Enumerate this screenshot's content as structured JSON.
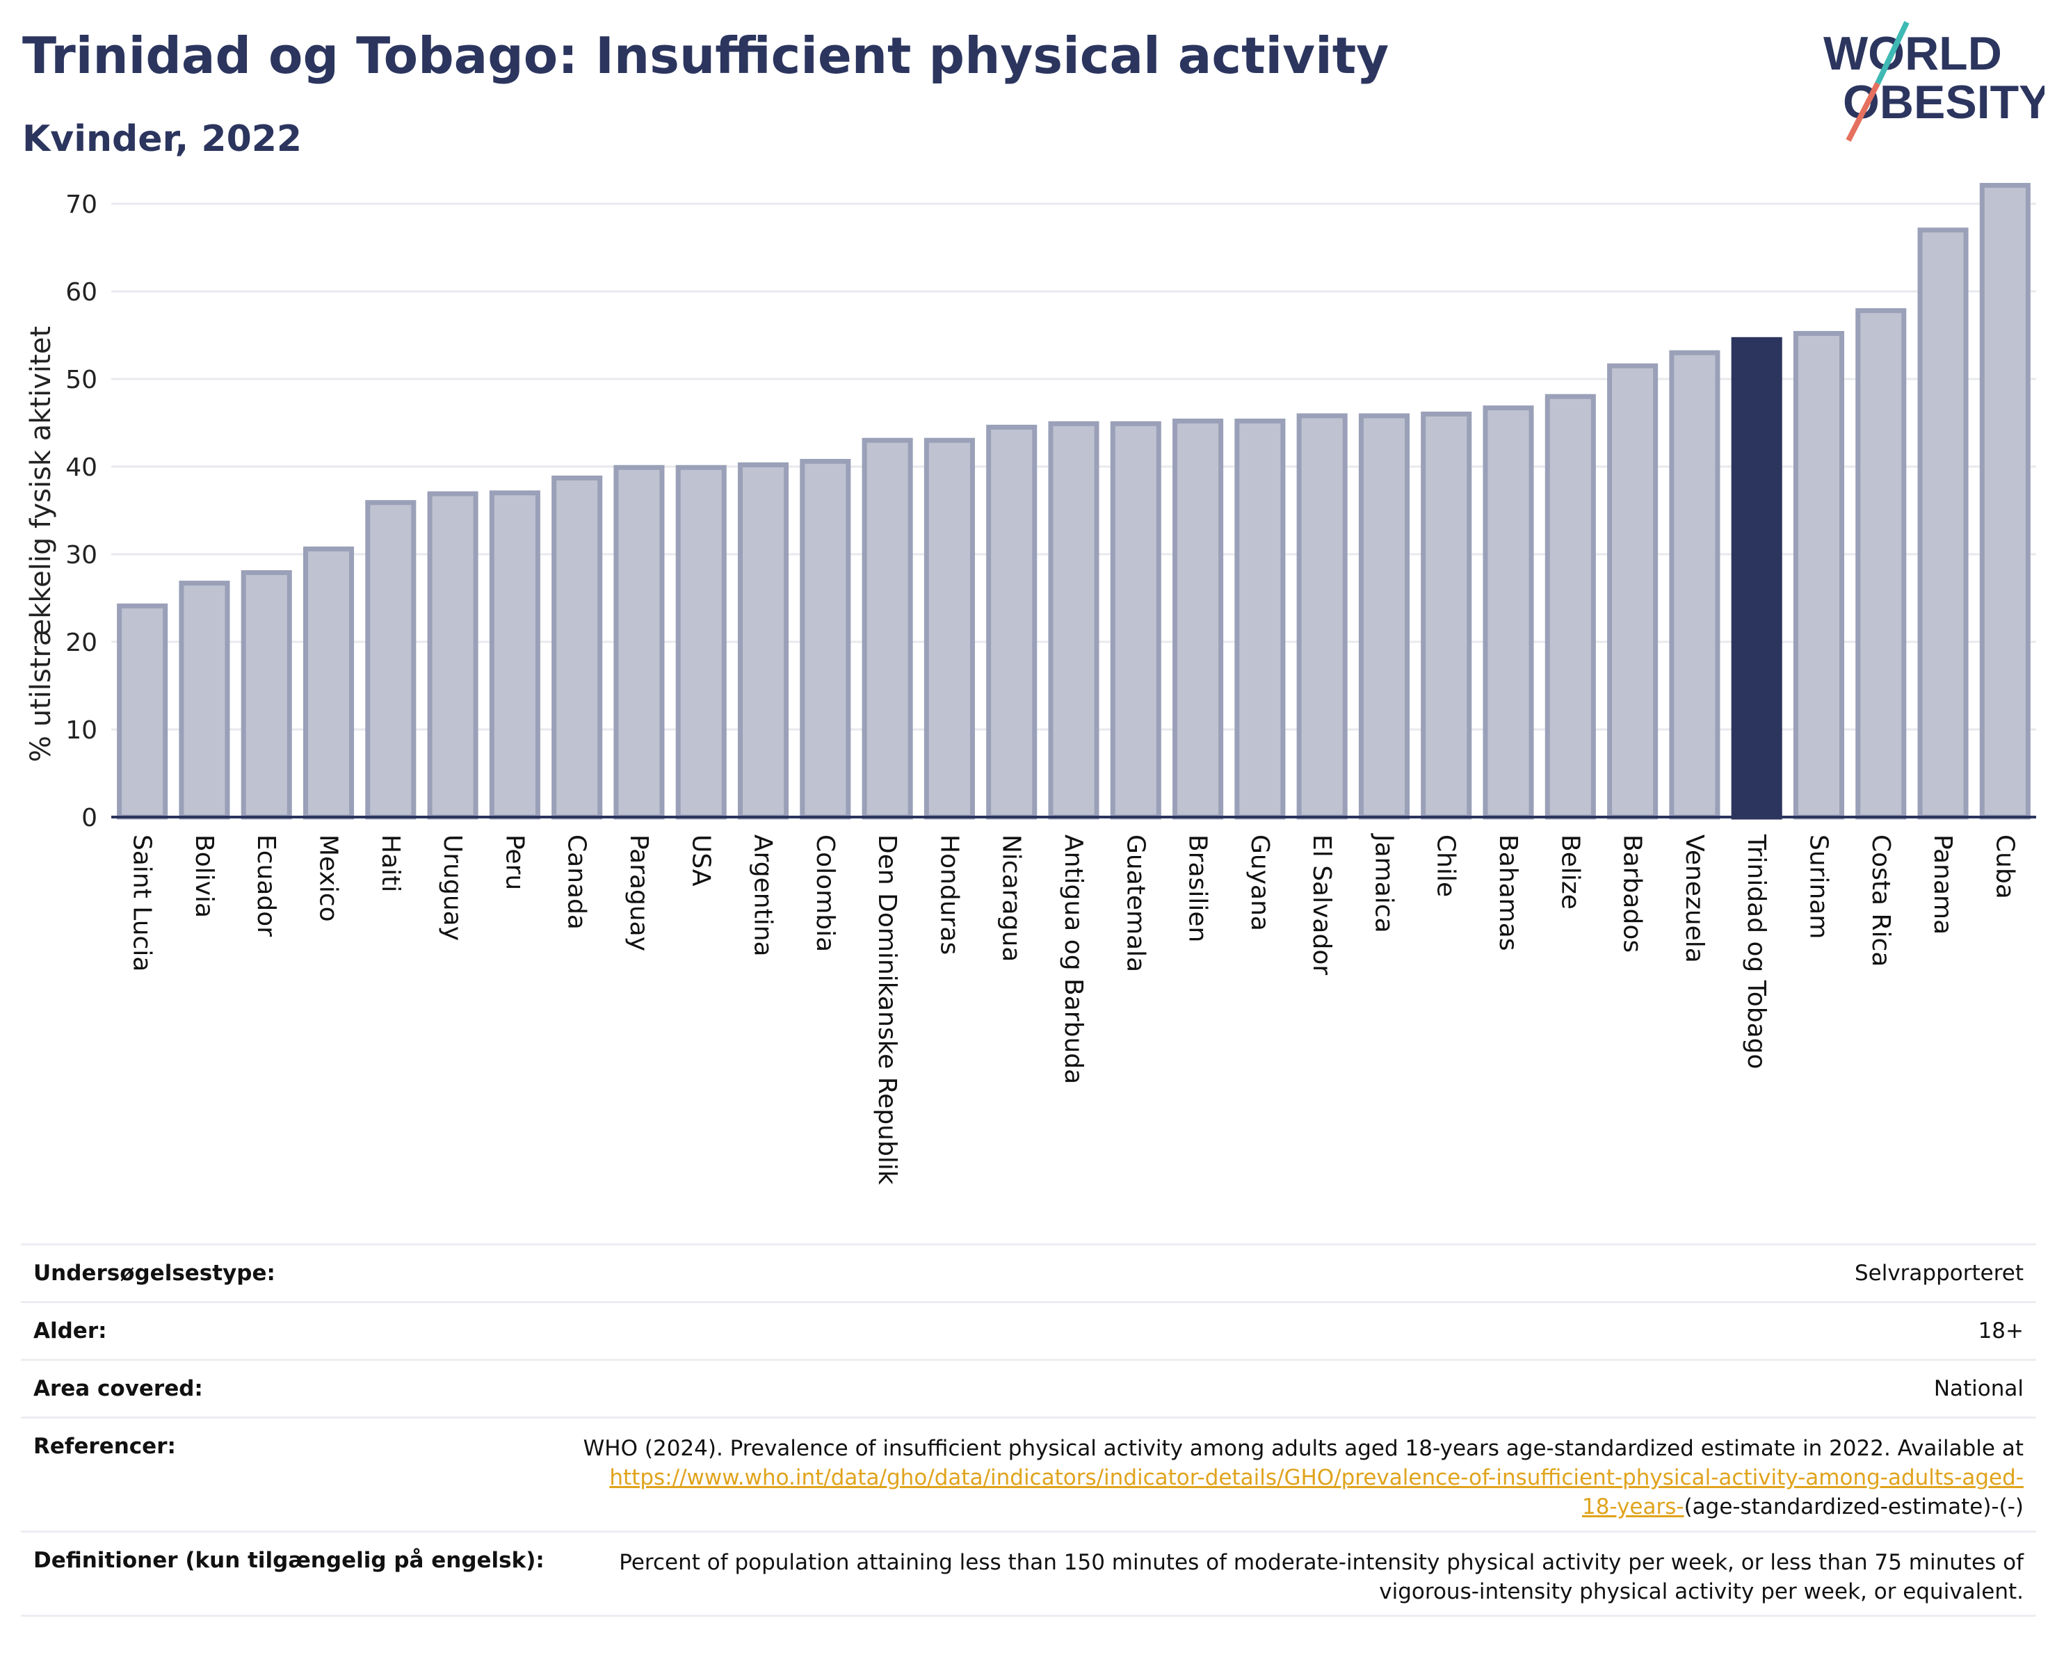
{
  "header": {
    "title": "Trinidad og Tobago: Insufficient physical activity",
    "subtitle": "Kvinder, 2022"
  },
  "logo": {
    "line1": "WORLD",
    "line2": "OBESITY",
    "icon": "world-obesity-logo"
  },
  "colors": {
    "bar": "#bfc2d0",
    "bar_stroke": "#9aa0b8",
    "highlight": "#2b355e",
    "grid": "#e8e9ee",
    "link": "#e0a31c"
  },
  "chart_data": {
    "type": "bar",
    "ylabel": "% utilstrækkelig fysisk aktivitet",
    "ylim": [
      0,
      75
    ],
    "yticks": [
      0,
      10,
      20,
      30,
      40,
      50,
      60,
      70
    ],
    "grid": true,
    "highlight": "Trinidad og Tobago",
    "categories": [
      "Saint Lucia",
      "Bolivia",
      "Ecuador",
      "Mexico",
      "Haiti",
      "Uruguay",
      "Peru",
      "Canada",
      "Paraguay",
      "USA",
      "Argentina",
      "Colombia",
      "Den Dominikanske Republik",
      "Honduras",
      "Nicaragua",
      "Antigua og Barbuda",
      "Guatemala",
      "Brasilien",
      "Guyana",
      "El Salvador",
      "Jamaica",
      "Chile",
      "Bahamas",
      "Belize",
      "Barbados",
      "Venezuela",
      "Trinidad og Tobago",
      "Surinam",
      "Costa Rica",
      "Panama",
      "Cuba"
    ],
    "values": [
      24.1,
      26.7,
      27.9,
      30.6,
      35.9,
      36.9,
      37.0,
      38.7,
      39.9,
      39.9,
      40.2,
      40.6,
      43.0,
      43.0,
      44.5,
      44.9,
      44.9,
      45.2,
      45.2,
      45.8,
      45.8,
      46.0,
      46.7,
      48.0,
      51.5,
      53.0,
      54.5,
      55.2,
      57.8,
      67.0,
      72.1
    ]
  },
  "meta": {
    "rows": [
      {
        "label": "Undersøgelsestype:",
        "value": "Selvrapporteret"
      },
      {
        "label": "Alder:",
        "value": "18+"
      },
      {
        "label": "Area covered:",
        "value": "National"
      }
    ],
    "references": {
      "label": "Referencer:",
      "text": "WHO (2024). Prevalence of insufficient physical activity among adults aged 18-years age-standardized estimate in 2022. Available at",
      "link_line1": "https://www.who.int/data/gho/data/indicators/indicator-details/GHO/prevalence-of-insufficient-physical-activity-among-adults-aged-",
      "link_line2": "18-years-",
      "suffix": "(age-standardized-estimate)-(-)"
    },
    "definitions": {
      "label": "Definitioner (kun tilgængelig på engelsk):",
      "line1": "Percent of population attaining less than 150 minutes of moderate-intensity physical activity per week, or less than 75 minutes of",
      "line2": "vigorous-intensity physical activity per week, or equivalent."
    }
  }
}
